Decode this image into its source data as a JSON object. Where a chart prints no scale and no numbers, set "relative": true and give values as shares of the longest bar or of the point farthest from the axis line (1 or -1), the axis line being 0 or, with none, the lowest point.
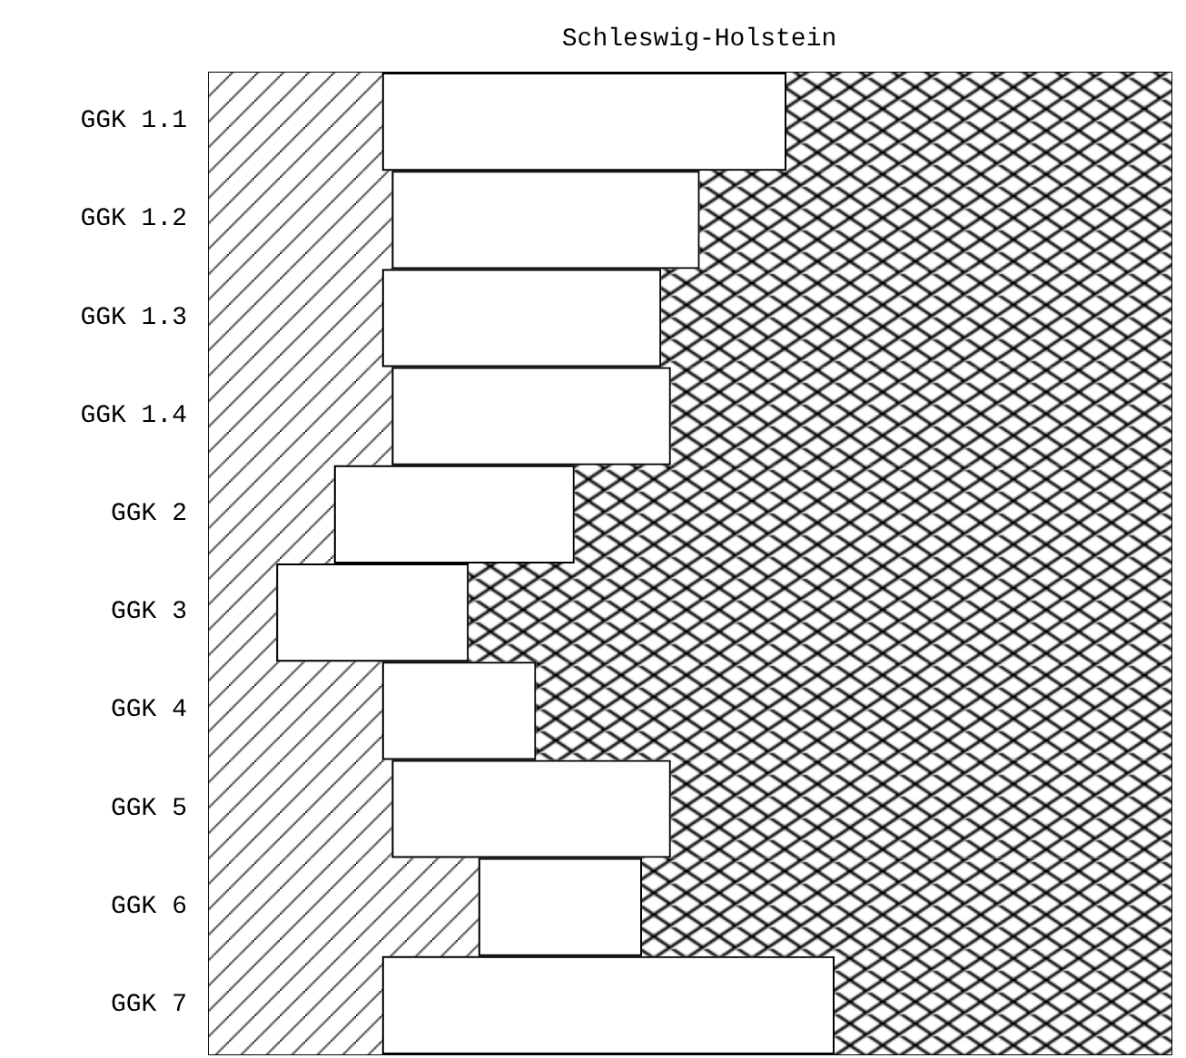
{
  "chart_data": {
    "type": "bar",
    "title": "Schleswig-Holstein",
    "orientation": "horizontal",
    "stacked": true,
    "relative": true,
    "categories": [
      "GGK 1.1",
      "GGK 1.2",
      "GGK 1.3",
      "GGK 1.4",
      "GGK 2",
      "GGK 3",
      "GGK 4",
      "GGK 5",
      "GGK 6",
      "GGK 7"
    ],
    "series": [
      {
        "color": "#000000",
        "values": [
          0.18,
          0.19,
          0.18,
          0.19,
          0.13,
          0.07,
          0.18,
          0.19,
          0.28,
          0.18
        ]
      },
      {
        "color": "#ffffff",
        "values": [
          0.42,
          0.32,
          0.29,
          0.29,
          0.25,
          0.2,
          0.16,
          0.29,
          0.17,
          0.47
        ]
      },
      {
        "color": "#000000",
        "values": [
          0.4,
          0.49,
          0.53,
          0.52,
          0.62,
          0.73,
          0.66,
          0.52,
          0.55,
          0.35
        ]
      }
    ]
  }
}
